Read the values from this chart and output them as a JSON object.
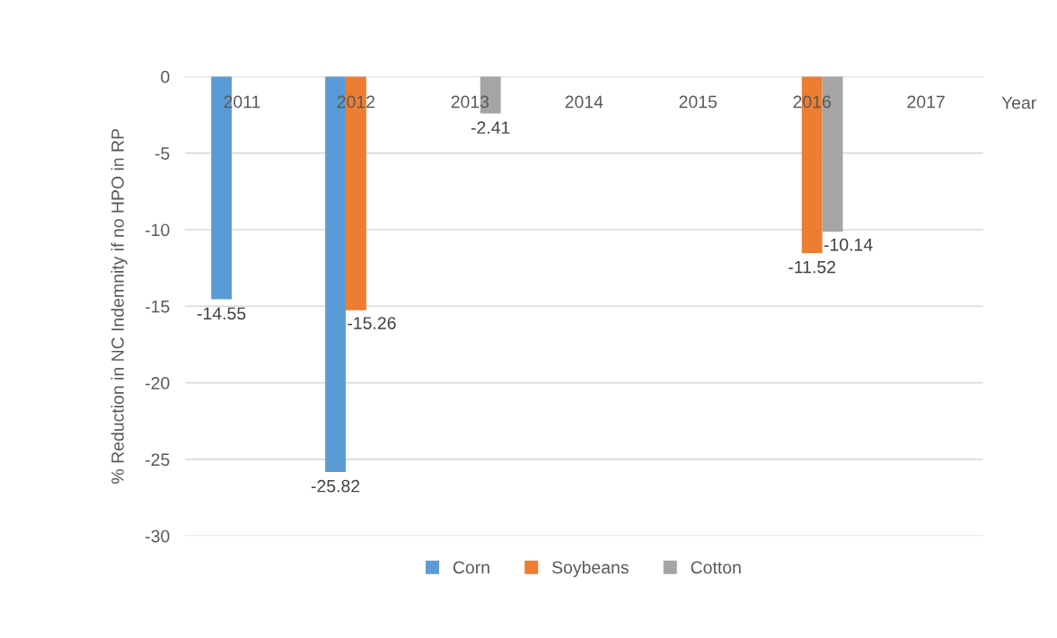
{
  "chart_data": {
    "type": "bar",
    "ylabel": "% Reduction in NC Indemnity if no HPO in RP",
    "xlabel": "Year",
    "categories": [
      "2011",
      "2012",
      "2013",
      "2014",
      "2015",
      "2016",
      "2017"
    ],
    "series": [
      {
        "name": "Corn",
        "color": "#5b9bd5",
        "values": [
          -14.55,
          -25.82,
          0,
          0,
          0,
          0,
          0
        ],
        "value_labels": [
          "-14.55",
          "-25.82",
          null,
          null,
          null,
          null,
          null
        ]
      },
      {
        "name": "Soybeans",
        "color": "#ed7d31",
        "values": [
          0,
          -15.26,
          0,
          0,
          0,
          -11.52,
          0
        ],
        "value_labels": [
          null,
          "-15.26",
          null,
          null,
          null,
          "-11.52",
          null
        ]
      },
      {
        "name": "Cotton",
        "color": "#a5a5a5",
        "values": [
          0,
          0,
          -2.41,
          0,
          0,
          -10.14,
          0
        ],
        "value_labels": [
          null,
          null,
          "-2.41",
          null,
          null,
          "-10.14",
          null
        ]
      }
    ],
    "ylim": [
      -30,
      0
    ],
    "yticks": [
      {
        "value": 0,
        "label": "0"
      },
      -5,
      -10,
      -15,
      -20,
      -25,
      -30
    ],
    "grid": "y",
    "legend": "bottom"
  }
}
